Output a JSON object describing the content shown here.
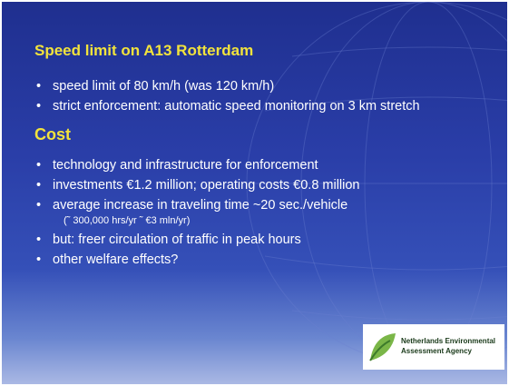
{
  "sections": [
    {
      "heading": "Speed limit on A13 Rotterdam",
      "bullets": [
        {
          "text": "speed limit of 80 km/h (was 120 km/h)"
        },
        {
          "text": "strict enforcement: automatic speed monitoring on 3 km stretch"
        }
      ]
    },
    {
      "heading": "Cost",
      "bullets": [
        {
          "text": "technology and infrastructure for enforcement"
        },
        {
          "text": "investments €1.2 million; operating costs €0.8 million"
        },
        {
          "text": "average increase in traveling time ~20 sec./vehicle",
          "note": "(˜ 300,000 hrs/yr ˜ €3 mln/yr)"
        },
        {
          "text": "but: freer circulation of traffic in peak hours"
        },
        {
          "text": "other welfare effects?"
        }
      ]
    }
  ],
  "logo": {
    "line1": "Netherlands Environmental",
    "line2": "Assessment Agency"
  }
}
